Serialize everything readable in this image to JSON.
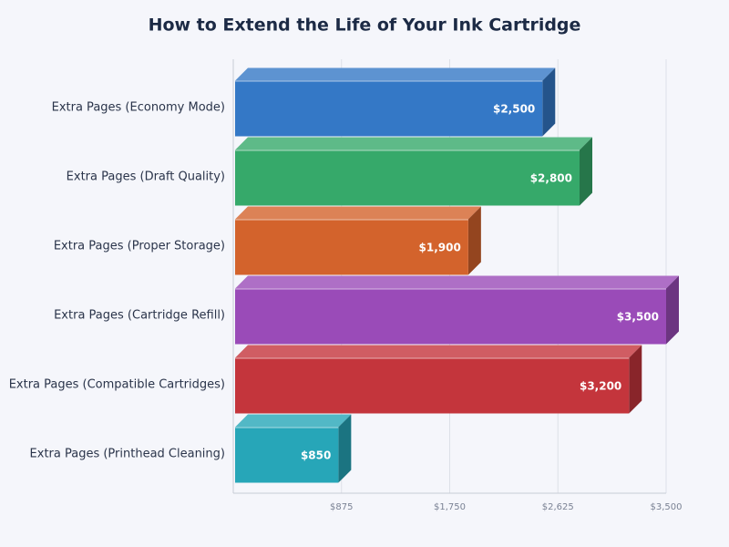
{
  "chart_data": {
    "type": "bar3d-horizontal",
    "title": "How to Extend the Life of Your Ink Cartridge",
    "categories": [
      "Extra Pages (Economy Mode)",
      "Extra Pages (Draft Quality)",
      "Extra Pages (Proper Storage)",
      "Extra Pages (Cartridge Refill)",
      "Extra Pages (Compatible Cartridges)",
      "Extra Pages (Printhead Cleaning)"
    ],
    "values": [
      2500,
      2800,
      1900,
      3500,
      3200,
      850
    ],
    "value_labels": [
      "$2,500",
      "$2,800",
      "$1,900",
      "$3,500",
      "$3,200",
      "$850"
    ],
    "colors": [
      "#3478c6",
      "#36a96a",
      "#d3632c",
      "#9a4bb8",
      "#c4353c",
      "#27a6b8"
    ],
    "xlim": [
      0,
      3500
    ],
    "xticks": [
      {
        "value": 875,
        "label": "$875"
      },
      {
        "value": 1750,
        "label": "$1,750"
      },
      {
        "value": 2625,
        "label": "$2,625"
      },
      {
        "value": 3500,
        "label": "$3,500"
      }
    ],
    "grid": true
  }
}
